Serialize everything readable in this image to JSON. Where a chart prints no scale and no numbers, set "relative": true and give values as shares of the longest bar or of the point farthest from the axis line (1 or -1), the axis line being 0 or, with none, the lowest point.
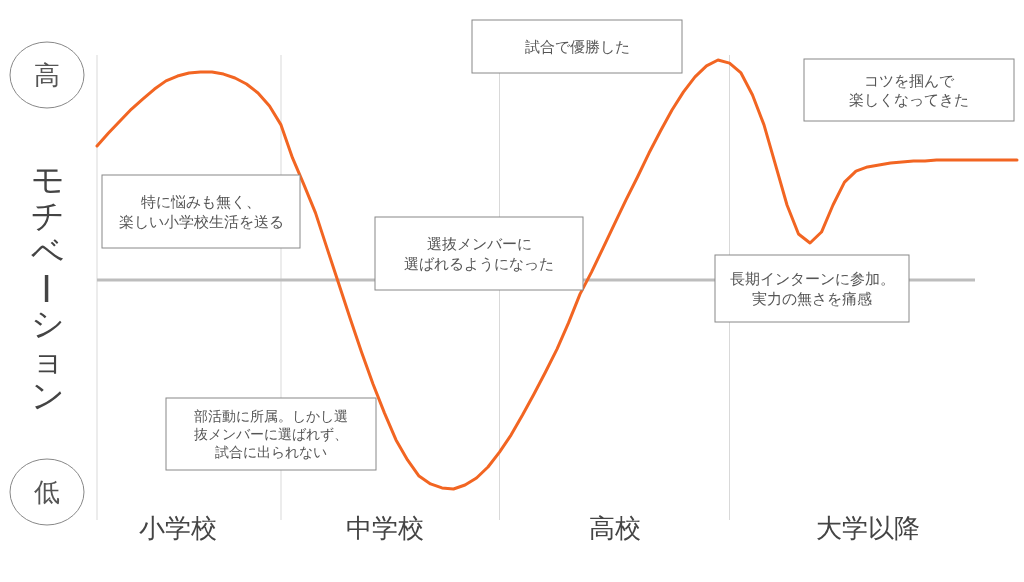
{
  "chart_data": {
    "type": "line",
    "relative": true,
    "ylabel": "モチベーション",
    "categories": [
      null,
      null,
      null,
      null,
      null,
      null,
      null,
      "小学校",
      null,
      null,
      null,
      null,
      null,
      null,
      null,
      null,
      null,
      null,
      null,
      null,
      null,
      null,
      null,
      null,
      null,
      "中学校",
      null,
      null,
      null,
      null,
      null,
      null,
      null,
      null,
      null,
      null,
      null,
      null,
      null,
      null,
      null,
      null,
      null,
      null,
      null,
      "高校",
      null,
      null,
      null,
      null,
      null,
      null,
      null,
      null,
      null,
      null,
      null,
      null,
      null,
      null,
      null,
      null,
      null,
      null,
      null,
      null,
      null,
      "大学以降",
      null,
      null,
      null,
      null,
      null,
      null,
      null,
      null,
      null,
      null,
      null,
      null,
      null
    ],
    "series": [
      {
        "color": "#f26522",
        "values": [
          0.609,
          0.668,
          0.723,
          0.777,
          0.823,
          0.868,
          0.905,
          0.927,
          0.941,
          0.945,
          0.945,
          0.936,
          0.918,
          0.891,
          0.85,
          0.791,
          0.705,
          0.555,
          0.432,
          0.305,
          0.145,
          -0.014,
          -0.173,
          -0.327,
          -0.473,
          -0.605,
          -0.727,
          -0.818,
          -0.891,
          -0.927,
          -0.945,
          -0.95,
          -0.932,
          -0.9,
          -0.85,
          -0.782,
          -0.705,
          -0.614,
          -0.518,
          -0.418,
          -0.314,
          -0.195,
          -0.064,
          0.036,
          0.145,
          0.255,
          0.364,
          0.468,
          0.577,
          0.677,
          0.773,
          0.855,
          0.923,
          0.973,
          1,
          0.986,
          0.941,
          0.841,
          0.705,
          0.523,
          0.341,
          0.209,
          0.168,
          0.218,
          0.341,
          0.445,
          0.495,
          0.514,
          0.523,
          0.532,
          0.536,
          0.541,
          0.541,
          0.545,
          0.545,
          0.545,
          0.545,
          0.545,
          0.545,
          0.545,
          0.545
        ]
      }
    ],
    "annotations": [
      "高",
      "低",
      "特に悩みも無く、楽しい小学校生活を送る",
      "部活動に所属。しかし選抜メンバーに選ばれず、試合に出られない",
      "選抜メンバーに選ばれるようになった",
      "試合で優勝した",
      "コツを掴んで楽しくなってきた",
      "長期インターンに参加。実力の無さを痛感"
    ]
  }
}
